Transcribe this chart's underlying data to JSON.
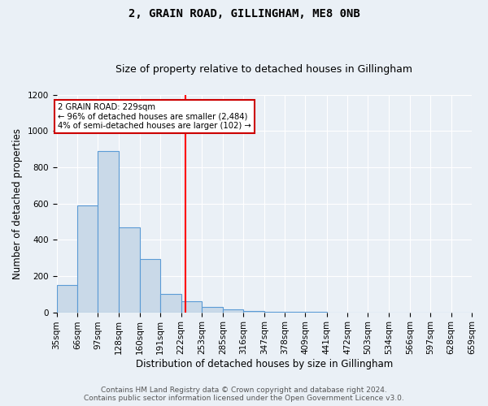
{
  "title": "2, GRAIN ROAD, GILLINGHAM, ME8 0NB",
  "subtitle": "Size of property relative to detached houses in Gillingham",
  "xlabel": "Distribution of detached houses by size in Gillingham",
  "ylabel": "Number of detached properties",
  "bin_edges": [
    35,
    66,
    97,
    128,
    160,
    191,
    222,
    253,
    285,
    316,
    347,
    378,
    409,
    441,
    472,
    503,
    534,
    566,
    597,
    628,
    659
  ],
  "bar_heights": [
    150,
    590,
    890,
    470,
    295,
    100,
    60,
    30,
    15,
    5,
    3,
    2,
    1,
    0,
    0,
    0,
    0,
    0,
    0,
    0
  ],
  "bar_color": "#c9d9e8",
  "bar_edge_color": "#5b9bd5",
  "red_line_x": 229,
  "annotation_text": "2 GRAIN ROAD: 229sqm\n← 96% of detached houses are smaller (2,484)\n4% of semi-detached houses are larger (102) →",
  "annotation_box_color": "#ffffff",
  "annotation_box_edge": "#cc0000",
  "ylim": [
    0,
    1200
  ],
  "yticks": [
    0,
    200,
    400,
    600,
    800,
    1000,
    1200
  ],
  "footer_line1": "Contains HM Land Registry data © Crown copyright and database right 2024.",
  "footer_line2": "Contains public sector information licensed under the Open Government Licence v3.0.",
  "bg_color": "#eaf0f6",
  "plot_bg_color": "#eaf0f6",
  "title_fontsize": 10,
  "subtitle_fontsize": 9,
  "axis_label_fontsize": 8.5,
  "tick_fontsize": 7.5,
  "footer_fontsize": 6.5
}
